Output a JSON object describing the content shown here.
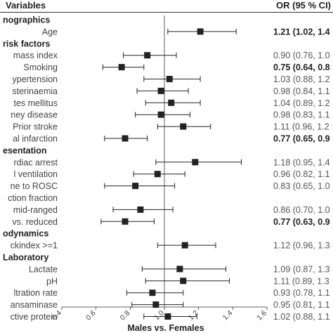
{
  "chart_data": {
    "type": "forest",
    "header": {
      "left": "Variables",
      "right": "OR (95 % CI)"
    },
    "xlabel": "Males vs. Females",
    "xlim": [
      0.4,
      1.6
    ],
    "xticks": [
      "0.4",
      "0.6",
      "0.8",
      "1.0",
      "1.2",
      "1.4",
      "1.6"
    ],
    "reference_line": 1.0,
    "rows": [
      {
        "label": "nographics",
        "section": true
      },
      {
        "label": "Age",
        "or": 1.21,
        "lo": 1.02,
        "hi": 1.42,
        "text": "1.21 (1.02, 1.4",
        "sig": true
      },
      {
        "label": "risk factors",
        "section": true
      },
      {
        "label": "mass index",
        "or": 0.9,
        "lo": 0.76,
        "hi": 1.07,
        "text": "0.90 (0.76, 1.0"
      },
      {
        "label": "Smoking",
        "or": 0.75,
        "lo": 0.64,
        "hi": 0.88,
        "text": "0.75 (0.64, 0.8",
        "sig": true
      },
      {
        "label": "ypertension",
        "or": 1.03,
        "lo": 0.88,
        "hi": 1.21,
        "text": "1.03 (0.88, 1.2"
      },
      {
        "label": "sterinaemia",
        "or": 0.98,
        "lo": 0.84,
        "hi": 1.14,
        "text": "0.98 (0.84, 1.1"
      },
      {
        "label": "tes mellitus",
        "or": 1.04,
        "lo": 0.89,
        "hi": 1.21,
        "text": "1.04 (0.89, 1.2"
      },
      {
        "label": "ney disease",
        "or": 0.98,
        "lo": 0.83,
        "hi": 1.15,
        "text": "0.98 (0.83, 1.1"
      },
      {
        "label": "Prior stroke",
        "or": 1.11,
        "lo": 0.96,
        "hi": 1.27,
        "text": "1.11 (0.96, 1.2"
      },
      {
        "label": "al infarction",
        "or": 0.77,
        "lo": 0.65,
        "hi": 0.9,
        "text": "0.77 (0.65, 0.9",
        "sig": true
      },
      {
        "label": "esentation",
        "section": true
      },
      {
        "label": "rdiac arrest",
        "or": 1.18,
        "lo": 0.95,
        "hi": 1.45,
        "text": "1.18 (0.95, 1.4"
      },
      {
        "label": "l ventilation",
        "or": 0.96,
        "lo": 0.82,
        "hi": 1.12,
        "text": "0.96 (0.82, 1.1"
      },
      {
        "label": "ne to ROSC",
        "or": 0.83,
        "lo": 0.65,
        "hi": 1.06,
        "text": "0.83 (0.65, 1.0"
      },
      {
        "label": "ction fraction",
        "section": false
      },
      {
        "label": "mid-ranged",
        "or": 0.86,
        "lo": 0.7,
        "hi": 1.05,
        "text": "0.86 (0.70, 1.0"
      },
      {
        "label": "vs. reduced",
        "or": 0.77,
        "lo": 0.63,
        "hi": 0.94,
        "text": "0.77 (0.63, 0.9",
        "sig": true
      },
      {
        "label": "odynamics",
        "section": true
      },
      {
        "label": "ckindex >=1",
        "or": 1.12,
        "lo": 0.96,
        "hi": 1.3,
        "text": "1.12 (0.96, 1.3"
      },
      {
        "label": "Laboratory",
        "section": true
      },
      {
        "label": "Lactate",
        "or": 1.09,
        "lo": 0.87,
        "hi": 1.36,
        "text": "1.09 (0.87, 1.3"
      },
      {
        "label": "pH",
        "or": 1.11,
        "lo": 0.89,
        "hi": 1.38,
        "text": "1.11 (0.89, 1.3"
      },
      {
        "label": "ltration rate",
        "or": 0.93,
        "lo": 0.78,
        "hi": 1.11,
        "text": "0.93 (0.78, 1.1"
      },
      {
        "label": "ansaminase",
        "or": 0.95,
        "lo": 0.81,
        "hi": 1.11,
        "text": "0.95 (0.81, 1.1"
      },
      {
        "label": "ctive protein",
        "or": 1.02,
        "lo": 0.88,
        "hi": 1.19,
        "text": "1.02 (0.88, 1.1"
      }
    ]
  }
}
